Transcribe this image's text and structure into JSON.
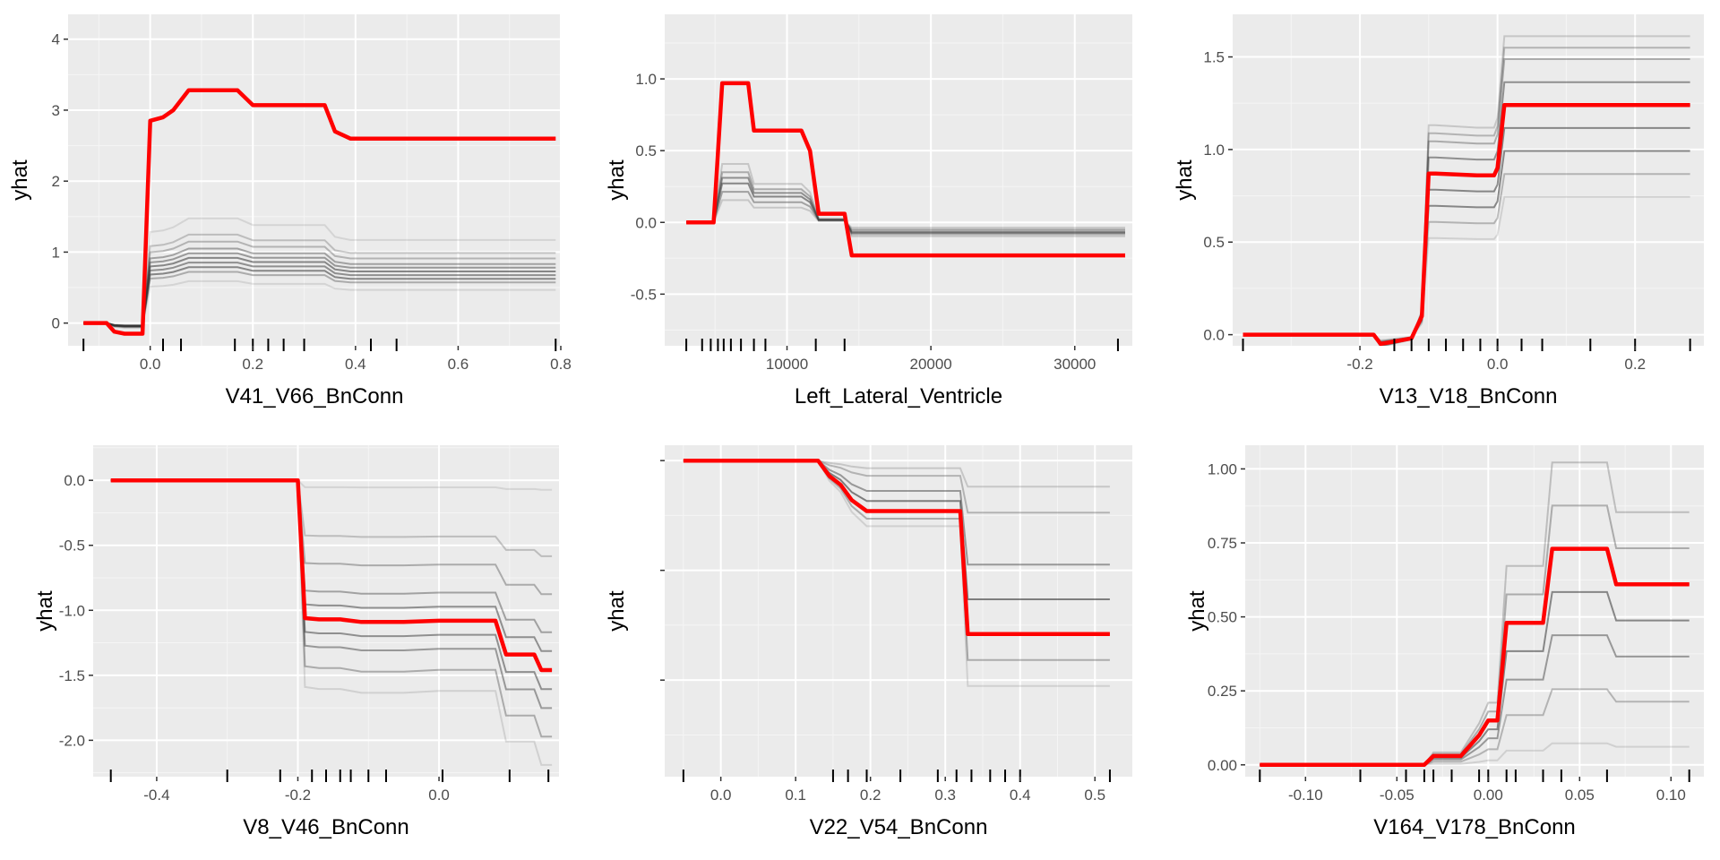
{
  "colors": {
    "panel_background": "#ebebeb",
    "grid_major": "#ffffff",
    "grid_minor": "#f5f5f5",
    "ice_curves": "#333333",
    "pdp_line": "#ff0000",
    "rug": "#000000",
    "text": "#4d4d4d"
  },
  "chart_data": [
    {
      "type": "line",
      "xlabel": "V41_V66_BnConn",
      "ylabel": "yhat",
      "xlim": [
        -0.16,
        0.8
      ],
      "ylim": [
        -0.32,
        4.35
      ],
      "xticks": [
        0.0,
        0.2,
        0.4,
        0.6,
        0.8
      ],
      "xtick_labels": [
        "0.0",
        "0.2",
        "0.4",
        "0.6",
        "0.8"
      ],
      "yticks": [
        0,
        1,
        2,
        3,
        4
      ],
      "ytick_labels": [
        "0",
        "1",
        "2",
        "3",
        "4"
      ],
      "rug": [
        -0.13,
        0.025,
        0.06,
        0.165,
        0.2,
        0.23,
        0.26,
        0.3,
        0.43,
        0.48,
        0.79
      ],
      "x": [
        -0.13,
        -0.085,
        -0.07,
        -0.05,
        -0.015,
        0.0,
        0.025,
        0.045,
        0.075,
        0.17,
        0.2,
        0.34,
        0.36,
        0.39,
        0.79
      ],
      "pdp": [
        0.0,
        0.0,
        -0.12,
        -0.15,
        -0.15,
        2.85,
        2.9,
        3.0,
        3.28,
        3.28,
        3.07,
        3.07,
        2.7,
        2.6,
        2.6
      ],
      "ice_levels": [
        0.18,
        0.22,
        0.24,
        0.26,
        0.28,
        0.3,
        0.32,
        0.35,
        0.38,
        0.45
      ],
      "ice_weight": [
        0.12,
        0.35,
        0.55,
        0.5,
        0.55,
        0.45,
        0.4,
        0.3,
        0.25,
        0.12
      ]
    },
    {
      "type": "line",
      "xlabel": "Left_Lateral_Ventricle",
      "ylabel": "yhat",
      "xlim": [
        1500,
        34000
      ],
      "ylim": [
        -0.86,
        1.45
      ],
      "xticks": [
        10000,
        20000,
        30000
      ],
      "xtick_labels": [
        "10000",
        "20000",
        "30000"
      ],
      "yticks": [
        -0.5,
        0.0,
        0.5,
        1.0
      ],
      "ytick_labels": [
        "-0.5",
        "0.0",
        "0.5",
        "1.0"
      ],
      "rug": [
        3000,
        4100,
        4700,
        5200,
        5600,
        6100,
        6800,
        7700,
        8500,
        12000,
        14000,
        33000
      ],
      "x": [
        3000,
        4900,
        5500,
        7300,
        7700,
        11000,
        11600,
        12200,
        14000,
        14500,
        33500
      ],
      "pdp": [
        0.0,
        0.0,
        0.97,
        0.97,
        0.64,
        0.64,
        0.5,
        0.06,
        0.06,
        -0.23,
        -0.23
      ],
      "ice_levels": [
        0.16,
        0.22,
        0.28,
        0.32,
        0.36,
        0.42
      ],
      "ice_weight": [
        0.2,
        0.4,
        0.55,
        0.5,
        0.35,
        0.2
      ]
    },
    {
      "type": "line",
      "xlabel": "V13_V18_BnConn",
      "ylabel": "yhat",
      "xlim": [
        -0.385,
        0.3
      ],
      "ylim": [
        -0.06,
        1.73
      ],
      "xticks": [
        -0.2,
        0.0,
        0.2
      ],
      "xtick_labels": [
        "-0.2",
        "0.0",
        "0.2"
      ],
      "yticks": [
        0.0,
        0.5,
        1.0,
        1.5
      ],
      "ytick_labels": [
        "0.0",
        "0.5",
        "1.0",
        "1.5"
      ],
      "rug": [
        -0.37,
        -0.15,
        -0.125,
        -0.1,
        -0.075,
        -0.05,
        -0.025,
        0.0,
        0.035,
        0.065,
        0.135,
        0.2,
        0.28
      ],
      "x": [
        -0.37,
        -0.18,
        -0.17,
        -0.155,
        -0.125,
        -0.11,
        -0.1,
        -0.09,
        -0.03,
        -0.005,
        0.0,
        0.01,
        0.28
      ],
      "pdp": [
        0.0,
        0.0,
        -0.05,
        -0.04,
        -0.02,
        0.1,
        0.87,
        0.87,
        0.86,
        0.86,
        0.9,
        1.24,
        1.24
      ],
      "ice_levels": [
        0.6,
        0.7,
        0.8,
        0.9,
        1.0,
        1.1,
        1.2,
        1.25,
        1.3
      ],
      "ice_weight": [
        0.15,
        0.3,
        0.55,
        0.55,
        0.6,
        0.5,
        0.35,
        0.3,
        0.2
      ]
    },
    {
      "type": "line",
      "xlabel": "V8_V46_BnConn",
      "ylabel": "yhat",
      "xlim": [
        -0.49,
        0.17
      ],
      "ylim": [
        -2.28,
        0.27
      ],
      "xticks": [
        -0.4,
        -0.2,
        0.0
      ],
      "xtick_labels": [
        "-0.4",
        "-0.2",
        "0.0"
      ],
      "yticks": [
        -2.0,
        -1.5,
        -1.0,
        -0.5,
        0.0
      ],
      "ytick_labels": [
        "-2.0",
        "-1.5",
        "-1.0",
        "-0.5",
        "0.0"
      ],
      "rug": [
        -0.465,
        -0.3,
        -0.225,
        -0.18,
        -0.16,
        -0.14,
        -0.125,
        -0.1,
        -0.075,
        0.005,
        0.1,
        0.155
      ],
      "x": [
        -0.465,
        -0.2,
        -0.19,
        -0.17,
        -0.14,
        -0.11,
        -0.05,
        0.0,
        0.08,
        0.095,
        0.135,
        0.145,
        0.16
      ],
      "pdp": [
        0.0,
        0.0,
        -1.06,
        -1.07,
        -1.07,
        -1.09,
        -1.09,
        -1.08,
        -1.08,
        -1.34,
        -1.34,
        -1.46,
        -1.46
      ],
      "ice_levels": [
        0.05,
        0.4,
        0.6,
        0.8,
        0.9,
        1.0,
        1.1,
        1.2,
        1.35,
        1.5
      ],
      "ice_weight": [
        0.12,
        0.25,
        0.35,
        0.4,
        0.5,
        0.55,
        0.5,
        0.45,
        0.35,
        0.15
      ]
    },
    {
      "type": "line",
      "xlabel": "V22_V54_BnConn",
      "ylabel": "yhat",
      "xlim": [
        -0.075,
        0.55
      ],
      "ylim": [
        -1.44,
        0.07
      ],
      "xticks": [
        0.0,
        0.1,
        0.2,
        0.3,
        0.4,
        0.5
      ],
      "xtick_labels": [
        "0.0",
        "0.1",
        "0.2",
        "0.3",
        "0.4",
        "0.5"
      ],
      "rug": [
        -0.05,
        0.15,
        0.17,
        0.195,
        0.24,
        0.29,
        0.315,
        0.335,
        0.36,
        0.38,
        0.4,
        0.52
      ],
      "x": [
        -0.05,
        0.13,
        0.145,
        0.16,
        0.175,
        0.195,
        0.32,
        0.33,
        0.39,
        0.52
      ],
      "pdp": [
        0.0,
        0.0,
        -0.07,
        -0.11,
        -0.18,
        -0.23,
        -0.23,
        -0.79,
        -0.79,
        -0.79
      ],
      "ice_levels": [
        0.15,
        0.3,
        0.6,
        0.8,
        1.0,
        1.15,
        1.3
      ],
      "ice_weight": [
        0.2,
        0.3,
        0.45,
        0.6,
        0.5,
        0.35,
        0.15
      ]
    },
    {
      "type": "line",
      "xlabel": "V164_V178_BnConn",
      "ylabel": "yhat",
      "xlim": [
        -0.133,
        0.118
      ],
      "ylim": [
        -0.04,
        1.08
      ],
      "xticks": [
        -0.1,
        -0.05,
        0.0,
        0.05,
        0.1
      ],
      "xtick_labels": [
        "-0.10",
        "-0.05",
        "0.00",
        "0.05",
        "0.10"
      ],
      "yticks": [
        0.0,
        0.25,
        0.5,
        0.75,
        1.0
      ],
      "ytick_labels": [
        "0.00",
        "0.25",
        "0.50",
        "0.75",
        "1.00"
      ],
      "rug": [
        -0.125,
        -0.07,
        -0.045,
        -0.035,
        -0.03,
        -0.02,
        -0.005,
        0.0,
        0.01,
        0.015,
        0.03,
        0.04,
        0.065,
        0.11
      ],
      "x": [
        -0.125,
        -0.035,
        -0.03,
        -0.015,
        -0.005,
        0.0,
        0.005,
        0.01,
        0.02,
        0.03,
        0.035,
        0.065,
        0.07,
        0.11
      ],
      "pdp": [
        0.0,
        0.0,
        0.03,
        0.03,
        0.1,
        0.15,
        0.15,
        0.48,
        0.48,
        0.48,
        0.73,
        0.73,
        0.61,
        0.61
      ],
      "ice_levels": [
        0.1,
        0.35,
        0.6,
        0.8,
        1.0,
        1.2,
        1.4
      ],
      "ice_weight": [
        0.15,
        0.3,
        0.45,
        0.55,
        0.5,
        0.35,
        0.25
      ]
    }
  ]
}
